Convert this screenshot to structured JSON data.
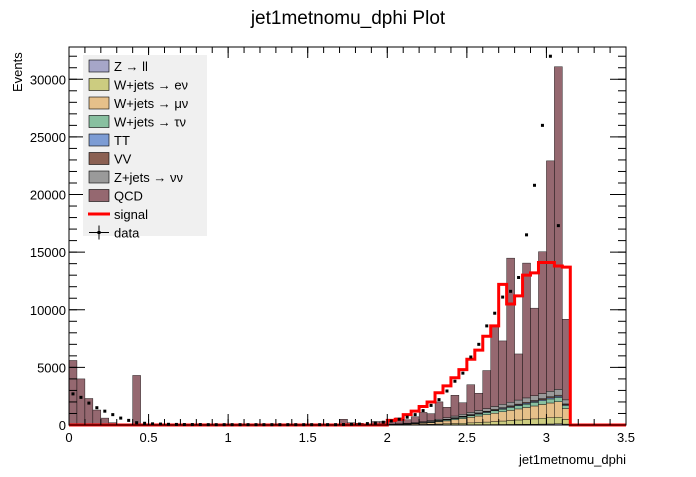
{
  "chart_data": {
    "type": "bar",
    "title": "jet1metnomu_dphi Plot",
    "xlabel": "jet1metnomu_dphi",
    "ylabel": "Events",
    "xlim": [
      0,
      3.5
    ],
    "ylim": [
      0,
      32800
    ],
    "x_ticks": [
      0,
      0.5,
      1,
      1.5,
      2,
      2.5,
      3,
      3.5
    ],
    "x_tick_labels": [
      "0",
      "0.5",
      "1",
      "1.5",
      "2",
      "2.5",
      "3",
      "3.5"
    ],
    "y_ticks": [
      0,
      5000,
      10000,
      15000,
      20000,
      25000,
      30000
    ],
    "y_tick_labels": [
      "0",
      "5000",
      "10000",
      "15000",
      "20000",
      "25000",
      "30000"
    ],
    "grid": false,
    "legend_position": "top-left",
    "bin_width": 0.05,
    "bin_edges_start": 0,
    "categories": [
      "0.00",
      "0.05",
      "0.10",
      "0.15",
      "0.20",
      "0.25",
      "0.30",
      "0.35",
      "0.40",
      "0.45",
      "0.50",
      "0.55",
      "0.60",
      "0.65",
      "0.70",
      "0.75",
      "0.80",
      "0.85",
      "0.90",
      "0.95",
      "1.00",
      "1.05",
      "1.10",
      "1.15",
      "1.20",
      "1.25",
      "1.30",
      "1.35",
      "1.40",
      "1.45",
      "1.50",
      "1.55",
      "1.60",
      "1.65",
      "1.70",
      "1.75",
      "1.80",
      "1.85",
      "1.90",
      "1.95",
      "2.00",
      "2.05",
      "2.10",
      "2.15",
      "2.20",
      "2.25",
      "2.30",
      "2.35",
      "2.40",
      "2.45",
      "2.50",
      "2.55",
      "2.60",
      "2.65",
      "2.70",
      "2.75",
      "2.80",
      "2.85",
      "2.90",
      "2.95",
      "3.00",
      "3.05",
      "3.10",
      "3.15",
      "3.20",
      "3.25",
      "3.30",
      "3.35",
      "3.40",
      "3.45"
    ],
    "series": [
      {
        "name": "Z → ll",
        "color": "#a6a6c8",
        "values": [
          0,
          0,
          0,
          0,
          0,
          0,
          0,
          0,
          0,
          0,
          0,
          0,
          0,
          0,
          0,
          0,
          0,
          0,
          0,
          0,
          0,
          0,
          0,
          0,
          0,
          0,
          0,
          0,
          0,
          0,
          0,
          0,
          0,
          0,
          0,
          0,
          0,
          0,
          0,
          0,
          5,
          5,
          5,
          5,
          10,
          10,
          15,
          15,
          20,
          20,
          25,
          30,
          35,
          40,
          45,
          50,
          55,
          60,
          70,
          80,
          90,
          110,
          80,
          0,
          0,
          0,
          0,
          0,
          0,
          0
        ]
      },
      {
        "name": "W+jets → eν",
        "color": "#cccc80",
        "values": [
          0,
          0,
          0,
          0,
          0,
          0,
          0,
          0,
          0,
          0,
          0,
          0,
          0,
          0,
          0,
          0,
          0,
          0,
          0,
          0,
          0,
          0,
          0,
          0,
          0,
          0,
          0,
          0,
          0,
          0,
          0,
          0,
          0,
          0,
          0,
          0,
          0,
          0,
          0,
          0,
          15,
          20,
          25,
          30,
          40,
          50,
          70,
          90,
          110,
          130,
          160,
          190,
          220,
          260,
          300,
          340,
          380,
          420,
          460,
          500,
          540,
          560,
          400,
          0,
          0,
          0,
          0,
          0,
          0,
          0
        ]
      },
      {
        "name": "W+jets → μν",
        "color": "#e6c08a",
        "values": [
          0,
          0,
          0,
          0,
          0,
          0,
          0,
          0,
          0,
          0,
          0,
          0,
          0,
          0,
          0,
          0,
          0,
          0,
          0,
          0,
          0,
          0,
          0,
          0,
          0,
          0,
          0,
          0,
          0,
          0,
          0,
          0,
          0,
          0,
          0,
          0,
          0,
          0,
          0,
          0,
          20,
          30,
          50,
          70,
          100,
          140,
          190,
          250,
          320,
          400,
          480,
          560,
          640,
          720,
          800,
          880,
          960,
          1040,
          1120,
          1200,
          1280,
          1350,
          950,
          0,
          0,
          0,
          0,
          0,
          0,
          0
        ]
      },
      {
        "name": "W+jets → τν",
        "color": "#88c0a0",
        "values": [
          0,
          0,
          0,
          0,
          0,
          0,
          0,
          0,
          0,
          0,
          0,
          0,
          0,
          0,
          0,
          0,
          0,
          0,
          0,
          0,
          0,
          0,
          0,
          0,
          0,
          0,
          0,
          0,
          0,
          0,
          0,
          0,
          0,
          0,
          0,
          0,
          0,
          0,
          0,
          0,
          10,
          15,
          20,
          30,
          40,
          55,
          70,
          90,
          110,
          130,
          150,
          170,
          190,
          210,
          230,
          250,
          270,
          290,
          310,
          330,
          350,
          370,
          260,
          0,
          0,
          0,
          0,
          0,
          0,
          0
        ]
      },
      {
        "name": "TT",
        "color": "#7d9cd4",
        "values": [
          0,
          0,
          0,
          0,
          0,
          0,
          0,
          0,
          0,
          0,
          0,
          0,
          0,
          0,
          0,
          0,
          0,
          0,
          0,
          0,
          0,
          0,
          0,
          0,
          0,
          0,
          0,
          0,
          0,
          0,
          0,
          0,
          0,
          0,
          0,
          0,
          0,
          0,
          0,
          0,
          5,
          5,
          10,
          10,
          15,
          20,
          25,
          30,
          35,
          40,
          45,
          50,
          55,
          60,
          65,
          70,
          75,
          80,
          85,
          90,
          95,
          100,
          70,
          0,
          0,
          0,
          0,
          0,
          0,
          0
        ]
      },
      {
        "name": "VV",
        "color": "#8b6052",
        "values": [
          0,
          0,
          0,
          0,
          0,
          0,
          0,
          0,
          0,
          0,
          0,
          0,
          0,
          0,
          0,
          0,
          0,
          0,
          0,
          0,
          0,
          0,
          0,
          0,
          0,
          0,
          0,
          0,
          0,
          0,
          0,
          0,
          0,
          0,
          0,
          0,
          0,
          0,
          0,
          0,
          5,
          5,
          10,
          10,
          15,
          20,
          25,
          30,
          35,
          40,
          45,
          50,
          55,
          60,
          65,
          70,
          75,
          80,
          85,
          90,
          95,
          100,
          70,
          0,
          0,
          0,
          0,
          0,
          0,
          0
        ]
      },
      {
        "name": "Z+jets → νν",
        "color": "#9a9a9a",
        "values": [
          0,
          0,
          0,
          0,
          0,
          0,
          0,
          0,
          0,
          0,
          0,
          0,
          0,
          0,
          0,
          0,
          0,
          0,
          0,
          0,
          0,
          0,
          0,
          0,
          0,
          0,
          0,
          0,
          0,
          0,
          0,
          0,
          0,
          0,
          0,
          0,
          0,
          0,
          0,
          0,
          20,
          30,
          40,
          55,
          70,
          90,
          110,
          130,
          150,
          170,
          190,
          210,
          230,
          260,
          290,
          320,
          350,
          380,
          410,
          440,
          470,
          500,
          350,
          0,
          0,
          0,
          0,
          0,
          0,
          0
        ]
      },
      {
        "name": "QCD",
        "color": "#956870",
        "values": [
          5600,
          4000,
          2300,
          1300,
          600,
          200,
          80,
          50,
          4300,
          30,
          20,
          20,
          15,
          15,
          10,
          10,
          10,
          10,
          10,
          10,
          10,
          10,
          10,
          10,
          10,
          10,
          10,
          10,
          10,
          10,
          10,
          10,
          10,
          10,
          500,
          200,
          150,
          100,
          300,
          300,
          400,
          500,
          300,
          500,
          800,
          600,
          1500,
          900,
          1800,
          1000,
          2400,
          1500,
          3300,
          7000,
          5500,
          12500,
          4000,
          11700,
          7600,
          12300,
          20000,
          28000,
          7000,
          0,
          0,
          0,
          0,
          0,
          0,
          0
        ]
      }
    ],
    "signal": {
      "name": "signal",
      "color": "#ff0000",
      "values": [
        0,
        0,
        0,
        0,
        0,
        0,
        0,
        0,
        0,
        0,
        0,
        0,
        0,
        0,
        0,
        0,
        0,
        0,
        0,
        0,
        0,
        0,
        0,
        0,
        0,
        0,
        0,
        0,
        0,
        0,
        0,
        0,
        0,
        0,
        0,
        0,
        0,
        0,
        0,
        0,
        400,
        500,
        900,
        1200,
        1600,
        2000,
        2800,
        3400,
        4100,
        4800,
        5700,
        6500,
        7700,
        8600,
        12200,
        10500,
        11200,
        13000,
        13200,
        14100,
        14100,
        13800,
        13700,
        0,
        0,
        0,
        0,
        0,
        0,
        0
      ]
    },
    "data_points": {
      "name": "data",
      "color": "#000000",
      "values": [
        2700,
        2400,
        1900,
        1500,
        1200,
        900,
        600,
        400,
        200,
        150,
        100,
        80,
        60,
        50,
        40,
        40,
        40,
        30,
        30,
        30,
        30,
        30,
        30,
        30,
        30,
        30,
        30,
        30,
        30,
        30,
        30,
        30,
        30,
        30,
        40,
        60,
        80,
        120,
        180,
        240,
        350,
        500,
        680,
        900,
        1250,
        1700,
        2200,
        2950,
        3800,
        4500,
        5900,
        7000,
        8600,
        9700,
        11100,
        11600,
        12800,
        16500,
        20800,
        26000,
        32000,
        17300,
        0,
        0,
        0,
        0,
        0,
        0,
        0,
        0
      ]
    }
  }
}
